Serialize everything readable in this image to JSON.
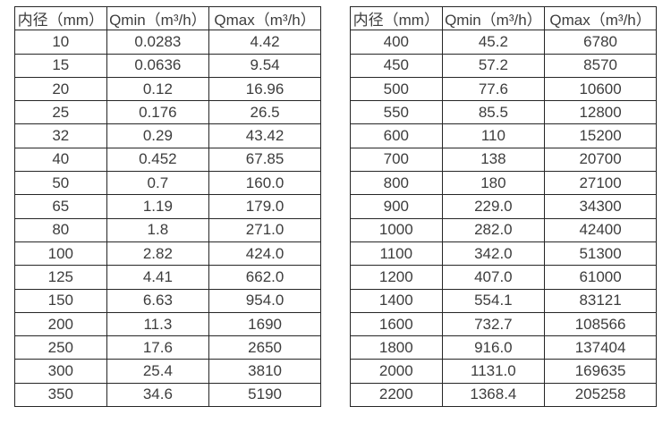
{
  "colors": {
    "background": "#ffffff",
    "border": "#262626",
    "text": "#3d3d3d"
  },
  "tables": [
    {
      "name": "small-diameter-flow-table",
      "headers": [
        "内径（mm）",
        "Qmin（m³/h）",
        "Qmax（m³/h）"
      ],
      "rows": [
        [
          "10",
          "0.0283",
          "4.42"
        ],
        [
          "15",
          "0.0636",
          "9.54"
        ],
        [
          "20",
          "0.12",
          "16.96"
        ],
        [
          "25",
          "0.176",
          "26.5"
        ],
        [
          "32",
          "0.29",
          "43.42"
        ],
        [
          "40",
          "0.452",
          "67.85"
        ],
        [
          "50",
          "0.7",
          "160.0"
        ],
        [
          "65",
          "1.19",
          "179.0"
        ],
        [
          "80",
          "1.8",
          "271.0"
        ],
        [
          "100",
          "2.82",
          "424.0"
        ],
        [
          "125",
          "4.41",
          "662.0"
        ],
        [
          "150",
          "6.63",
          "954.0"
        ],
        [
          "200",
          "11.3",
          "1690"
        ],
        [
          "250",
          "17.6",
          "2650"
        ],
        [
          "300",
          "25.4",
          "3810"
        ],
        [
          "350",
          "34.6",
          "5190"
        ]
      ]
    },
    {
      "name": "large-diameter-flow-table",
      "headers": [
        "内径（mm）",
        "Qmin（m³/h）",
        "Qmax（m³/h）"
      ],
      "rows": [
        [
          "400",
          "45.2",
          "6780"
        ],
        [
          "450",
          "57.2",
          "8570"
        ],
        [
          "500",
          "77.6",
          "10600"
        ],
        [
          "550",
          "85.5",
          "12800"
        ],
        [
          "600",
          "110",
          "15200"
        ],
        [
          "700",
          "138",
          "20700"
        ],
        [
          "800",
          "180",
          "27100"
        ],
        [
          "900",
          "229.0",
          "34300"
        ],
        [
          "1000",
          "282.0",
          "42400"
        ],
        [
          "1100",
          "342.0",
          "51300"
        ],
        [
          "1200",
          "407.0",
          "61000"
        ],
        [
          "1400",
          "554.1",
          "83121"
        ],
        [
          "1600",
          "732.7",
          "108566"
        ],
        [
          "1800",
          "916.0",
          "137404"
        ],
        [
          "2000",
          "1131.0",
          "169635"
        ],
        [
          "2200",
          "1368.4",
          "205258"
        ]
      ]
    }
  ]
}
